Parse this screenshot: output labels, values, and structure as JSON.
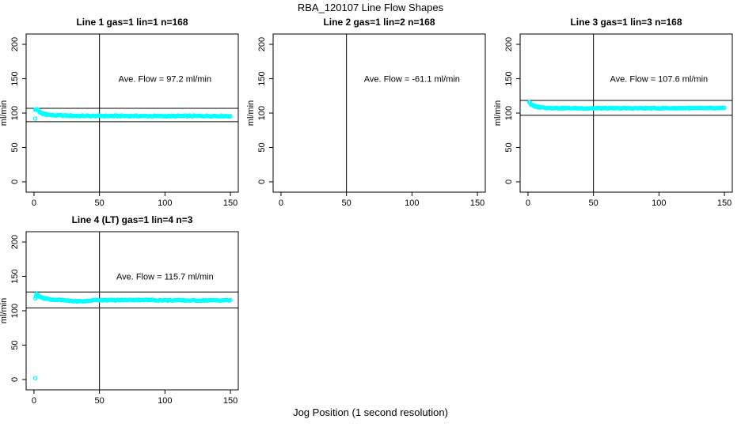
{
  "chart_data": {
    "type": "scatter",
    "title": "RBA_120107  Line Flow Shapes",
    "xlabel": "Jog Position (1 second resolution)",
    "ylabel": "ml/min",
    "xlim": [
      -6,
      156
    ],
    "ylim": [
      -15,
      215
    ],
    "xticks": [
      0,
      50,
      100,
      150
    ],
    "yticks": [
      0,
      50,
      100,
      150,
      200
    ],
    "grid": false,
    "legend": "none",
    "marker": "open-circle",
    "marker_color": "#00ffff",
    "line_color": "#000000",
    "background_color": "#ffffff",
    "vline_x": 50,
    "panels": [
      {
        "title": "Line 1 gas=1 lin=1 n=168",
        "annotation": "Ave. Flow =  97.2  ml/min",
        "ave_flow_ml_min": 97.2,
        "n": 168,
        "hlines": [
          106.9,
          87.5
        ],
        "x_range": [
          1,
          150
        ],
        "profile": [
          [
            1,
            104.5
          ],
          [
            2,
            105.5
          ],
          [
            3,
            105
          ],
          [
            4,
            102.5
          ],
          [
            5,
            100.5
          ],
          [
            7,
            99
          ],
          [
            10,
            97.8
          ],
          [
            15,
            96.8
          ],
          [
            25,
            96.2
          ],
          [
            40,
            95.8
          ],
          [
            70,
            95.8
          ],
          [
            100,
            95.6
          ],
          [
            130,
            95.8
          ],
          [
            150,
            95.7
          ]
        ],
        "outliers": [
          [
            1,
            92
          ]
        ],
        "jitter": 0.8,
        "seed": 1
      },
      {
        "title": "Line 2 gas=1 lin=2 n=168",
        "annotation": "Ave. Flow =  -61.1   ml/min",
        "ave_flow_ml_min": -61.1,
        "n": 168,
        "hlines": [],
        "x_range": [
          1,
          150
        ],
        "profile": [],
        "outliers": [],
        "jitter": 0,
        "seed": 2
      },
      {
        "title": "Line 3 gas=1 lin=3 n=168",
        "annotation": "Ave. Flow =  107.6  ml/min",
        "ave_flow_ml_min": 107.6,
        "n": 168,
        "hlines": [
          118.4,
          96.8
        ],
        "x_range": [
          1,
          150
        ],
        "profile": [
          [
            1,
            116
          ],
          [
            2,
            113.5
          ],
          [
            3,
            112
          ],
          [
            4,
            110.8
          ],
          [
            6,
            109.5
          ],
          [
            9,
            108.5
          ],
          [
            14,
            107.8
          ],
          [
            22,
            107.3
          ],
          [
            40,
            107
          ],
          [
            80,
            107
          ],
          [
            120,
            107.2
          ],
          [
            150,
            107
          ]
        ],
        "outliers": [],
        "jitter": 0.7,
        "seed": 3
      },
      {
        "title": "Line 4 (LT) gas=1 lin=4 n=3",
        "annotation": "Ave. Flow =  115.7  ml/min",
        "ave_flow_ml_min": 115.7,
        "n": 3,
        "hlines": [
          127.3,
          104.1
        ],
        "x_range": [
          1,
          150
        ],
        "profile": [
          [
            1,
            117.5
          ],
          [
            2,
            124.5
          ],
          [
            3,
            123
          ],
          [
            4,
            121
          ],
          [
            6,
            119
          ],
          [
            9,
            117.5
          ],
          [
            13,
            116.5
          ],
          [
            20,
            115.5
          ],
          [
            28,
            114.2
          ],
          [
            36,
            113.6
          ],
          [
            42,
            114.5
          ],
          [
            48,
            115.8
          ],
          [
            60,
            115.3
          ],
          [
            80,
            115.8
          ],
          [
            100,
            115.2
          ],
          [
            120,
            115
          ],
          [
            150,
            115.2
          ]
        ],
        "outliers": [
          [
            1,
            2
          ]
        ],
        "jitter": 0.7,
        "seed": 4
      }
    ]
  }
}
